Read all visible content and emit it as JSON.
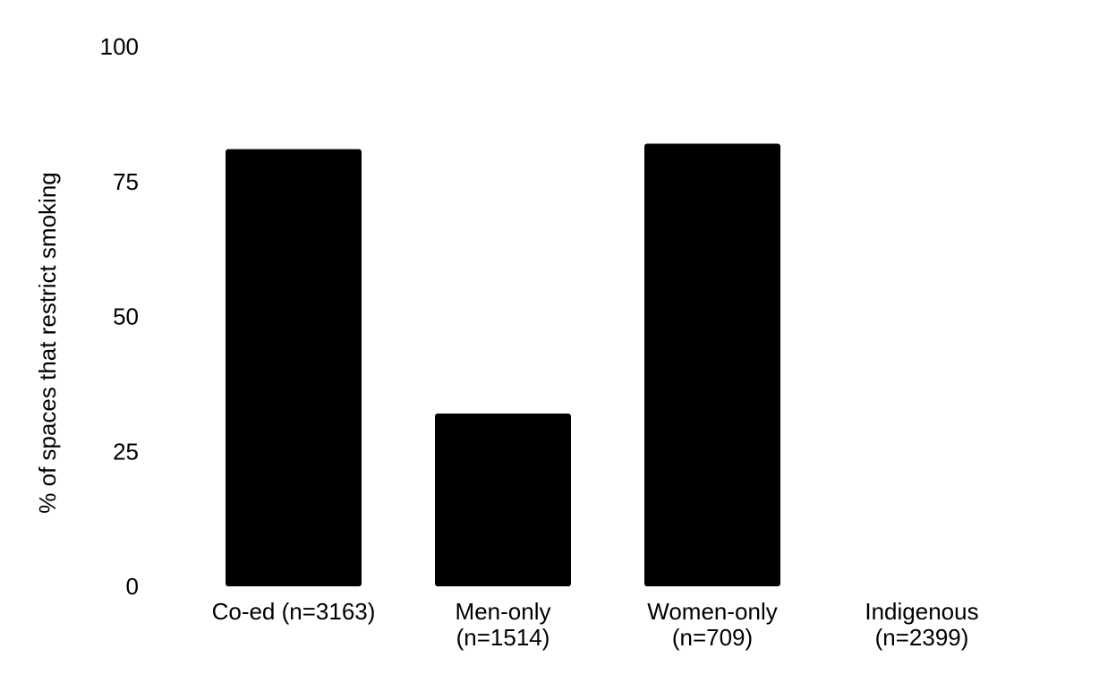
{
  "chart_data": {
    "type": "bar",
    "title": "",
    "xlabel": "",
    "ylabel": "% of spaces that restrict smoking",
    "categories": [
      [
        "Co-ed (n=3163)"
      ],
      [
        "Men-only",
        "(n=1514)"
      ],
      [
        "Women-only",
        "(n=709)"
      ],
      [
        "Indigenous",
        "(n=2399)"
      ]
    ],
    "values": [
      81,
      32,
      82,
      0
    ],
    "ylim": [
      0,
      100
    ],
    "yticks": [
      0,
      25,
      50,
      75,
      100
    ],
    "grid": false,
    "legend": "none",
    "bar_color": "#000000"
  }
}
